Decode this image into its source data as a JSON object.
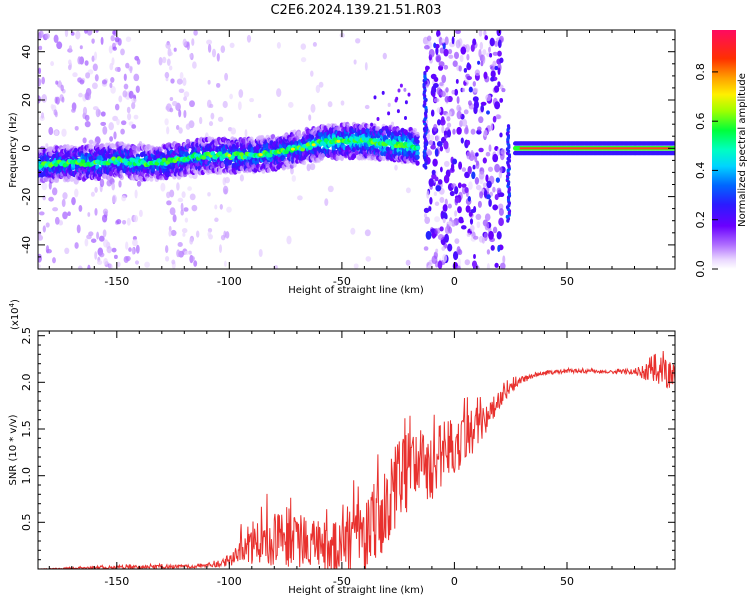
{
  "chart_data": [
    {
      "type": "heatmap",
      "title": "C2E6.2024.139.21.51.R03",
      "xlabel": "Height of straight line (km)",
      "ylabel": "Frequency (Hz)",
      "xlim": [
        -185,
        98
      ],
      "ylim": [
        -50,
        49
      ],
      "xticks": [
        -150,
        -100,
        -50,
        0,
        50
      ],
      "xtick_labels": [
        "-150",
        "-100",
        "-50",
        "0",
        "50"
      ],
      "yticks": [
        -40,
        -20,
        0,
        20,
        40
      ],
      "ytick_labels": [
        "-40",
        "-20",
        "0",
        "20",
        "40"
      ],
      "ridge": {
        "x": [
          -185,
          -170,
          -160,
          -150,
          -140,
          -130,
          -120,
          -110,
          -100,
          -90,
          -80,
          -70,
          -60,
          -50,
          -40,
          -30,
          -20,
          -15,
          25,
          30,
          50,
          70,
          98
        ],
        "y": [
          -7,
          -6,
          -6,
          -5,
          -6,
          -6,
          -4,
          -3,
          -3,
          -3,
          -2,
          0,
          2,
          3,
          3,
          2,
          1,
          0,
          0,
          0,
          0,
          0,
          0
        ]
      },
      "colorbar": {
        "label": "Normalized spectral amplitude",
        "min": 0.0,
        "max": 0.97,
        "ticks": [
          0.0,
          0.2,
          0.4,
          0.6,
          0.8
        ],
        "tick_labels": [
          "0.0",
          "0.2",
          "0.4",
          "0.6",
          "0.8"
        ]
      }
    },
    {
      "type": "line",
      "xlabel": "Height of straight line (km)",
      "ylabel": "SNR (10 * v/v)",
      "scale_label": "(x10",
      "scale_exp": "4",
      "scale_close": ")",
      "xlim": [
        -185,
        98
      ],
      "ylim": [
        0,
        2.55
      ],
      "xticks": [
        -150,
        -100,
        -50,
        0,
        50
      ],
      "xtick_labels": [
        "-150",
        "-100",
        "-50",
        "0",
        "50"
      ],
      "yticks": [
        0.5,
        1.0,
        1.5,
        2.0,
        2.5
      ],
      "ytick_labels": [
        "0.5",
        "1.0",
        "1.5",
        "2.0",
        "2.5"
      ],
      "series": [
        {
          "name": "SNR",
          "color": "#e8312e",
          "x": [
            -185,
            -150,
            -110,
            -100,
            -95,
            -90,
            -85,
            -80,
            -75,
            -70,
            -65,
            -60,
            -55,
            -50,
            -45,
            -40,
            -35,
            -30,
            -25,
            -20,
            -15,
            -10,
            -5,
            0,
            5,
            10,
            15,
            20,
            25,
            30,
            35,
            40,
            50,
            60,
            70,
            80,
            85,
            90,
            95,
            98
          ],
          "y": [
            0.0,
            0.02,
            0.03,
            0.08,
            0.22,
            0.3,
            0.35,
            0.32,
            0.35,
            0.3,
            0.28,
            0.25,
            0.22,
            0.24,
            0.4,
            0.3,
            0.55,
            0.65,
            0.95,
            1.05,
            1.15,
            1.1,
            1.25,
            1.3,
            1.45,
            1.5,
            1.65,
            1.82,
            1.95,
            2.02,
            2.07,
            2.1,
            2.12,
            2.12,
            2.11,
            2.12,
            2.1,
            2.12,
            2.1,
            2.15
          ],
          "noise": [
            0.0,
            0.02,
            0.02,
            0.05,
            0.18,
            0.25,
            0.35,
            0.3,
            0.32,
            0.3,
            0.28,
            0.28,
            0.3,
            0.3,
            0.4,
            0.35,
            0.45,
            0.55,
            0.45,
            0.42,
            0.4,
            0.38,
            0.35,
            0.32,
            0.28,
            0.24,
            0.15,
            0.1,
            0.07,
            0.04,
            0.02,
            0.02,
            0.02,
            0.02,
            0.02,
            0.03,
            0.1,
            0.14,
            0.18,
            0.2
          ]
        }
      ]
    }
  ]
}
